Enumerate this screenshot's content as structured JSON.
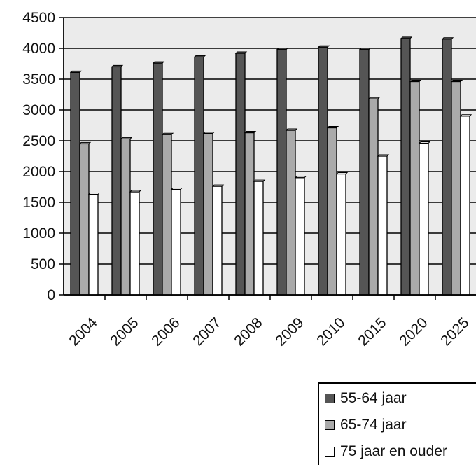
{
  "chart_data": {
    "type": "bar",
    "title": "",
    "xlabel": "",
    "ylabel": "",
    "categories": [
      "2004",
      "2005",
      "2006",
      "2007",
      "2008",
      "2009",
      "2010",
      "2015",
      "2020",
      "2025"
    ],
    "ylim": [
      0,
      4500
    ],
    "yticks": [
      0,
      500,
      1000,
      1500,
      2000,
      2500,
      3000,
      3500,
      4000,
      4500
    ],
    "yticks_labels": [
      "0",
      "500",
      "1000",
      "1500",
      "2000",
      "2500",
      "3000",
      "3500",
      "4000",
      "4500"
    ],
    "grid": true,
    "legend_position": "bottom-right",
    "series": [
      {
        "name": "55-64 jaar",
        "color": "#555555",
        "values": [
          3610,
          3700,
          3760,
          3860,
          3920,
          3980,
          4020,
          3980,
          4160,
          4150
        ]
      },
      {
        "name": "65-74 jaar",
        "color": "#aaaaaa",
        "values": [
          2450,
          2530,
          2600,
          2620,
          2630,
          2670,
          2710,
          3180,
          3460,
          3460
        ]
      },
      {
        "name": "75 jaar en ouder",
        "color": "#ffffff",
        "values": [
          1630,
          1670,
          1710,
          1760,
          1840,
          1900,
          1960,
          2250,
          2460,
          2900
        ]
      }
    ],
    "plot_background": "#ebebeb"
  }
}
